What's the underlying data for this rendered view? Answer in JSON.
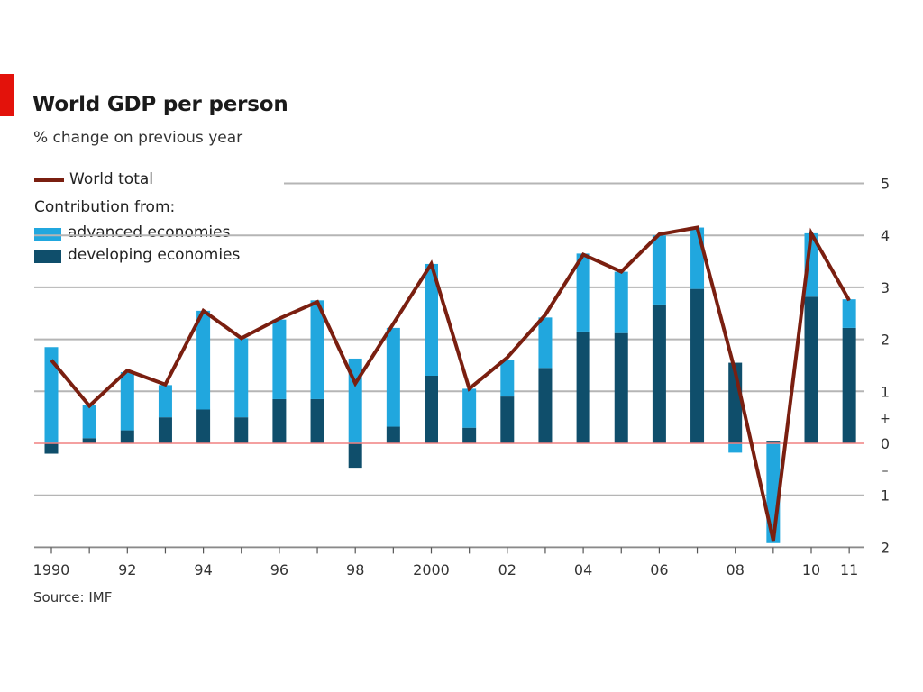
{
  "title": "World GDP per person",
  "subtitle": "% change on previous year",
  "source": "Source: IMF",
  "legend": {
    "world_total": "World total",
    "contribution_header": "Contribution from:",
    "advanced": "advanced economies",
    "developing": "developing economies"
  },
  "colors": {
    "accent": "#e3120b",
    "world_line": "#7a1f10",
    "advanced": "#21a7de",
    "developing": "#0f4e6b",
    "grid": "#b5b5b5",
    "zero_line": "#f08080"
  },
  "chart_data": {
    "type": "bar",
    "stacked": true,
    "title": "World GDP per person",
    "subtitle": "% change on previous year",
    "x": [
      1990,
      1991,
      1992,
      1993,
      1994,
      1995,
      1996,
      1997,
      1998,
      1999,
      2000,
      2001,
      2002,
      2003,
      2004,
      2005,
      2006,
      2007,
      2008,
      2009,
      2010,
      2011
    ],
    "x_tick_labels": [
      "1990",
      "",
      "92",
      "",
      "94",
      "",
      "96",
      "",
      "98",
      "",
      "2000",
      "",
      "02",
      "",
      "04",
      "",
      "06",
      "",
      "08",
      "",
      "10",
      "11"
    ],
    "ylim": [
      -2,
      5
    ],
    "y_ticks": [
      5,
      4,
      3,
      2,
      1,
      0,
      -1,
      -2
    ],
    "y_tick_labels": [
      "5",
      "4",
      "3",
      "2",
      "1",
      "0",
      "1",
      "2"
    ],
    "y_sign_labels": [
      "+",
      "–"
    ],
    "y_axis_side": "right",
    "grid": true,
    "legend_position": "top-left",
    "series": [
      {
        "name": "developing economies",
        "type": "bar",
        "values": [
          -0.2,
          0.1,
          0.25,
          0.5,
          0.65,
          0.5,
          0.85,
          0.85,
          -0.47,
          0.32,
          1.3,
          0.3,
          0.9,
          1.45,
          2.15,
          2.12,
          2.67,
          2.97,
          1.55,
          0.05,
          2.82,
          2.22
        ]
      },
      {
        "name": "advanced economies",
        "type": "bar",
        "values": [
          1.85,
          0.63,
          1.12,
          0.62,
          1.9,
          1.52,
          1.53,
          1.9,
          1.63,
          1.9,
          2.15,
          0.75,
          0.7,
          0.97,
          1.5,
          1.18,
          1.33,
          1.18,
          -0.18,
          -1.92,
          1.22,
          0.55
        ]
      },
      {
        "name": "World total",
        "type": "line",
        "values": [
          1.6,
          0.72,
          1.4,
          1.13,
          2.55,
          2.02,
          2.4,
          2.72,
          1.15,
          2.3,
          3.45,
          1.05,
          1.65,
          2.47,
          3.63,
          3.3,
          4.02,
          4.15,
          1.37,
          -1.87,
          4.04,
          2.75
        ]
      }
    ]
  }
}
